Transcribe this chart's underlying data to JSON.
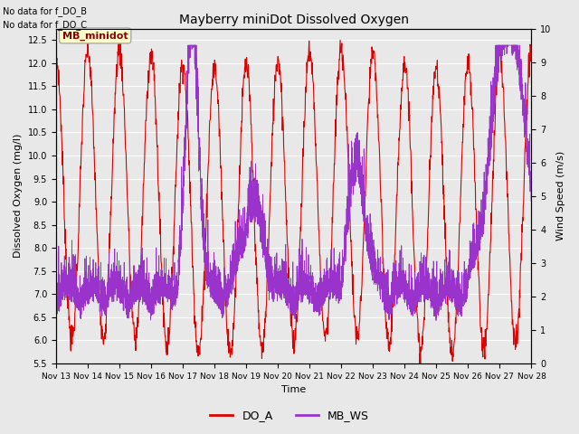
{
  "title": "Mayberry miniDot Dissolved Oxygen",
  "xlabel": "Time",
  "ylabel_left": "Dissolved Oxygen (mg/l)",
  "ylabel_right": "Wind Speed (m/s)",
  "text_no_data": [
    "No data for f_DO_B",
    "No data for f_DO_C"
  ],
  "legend_label_box": "MB_minidot",
  "legend_entries": [
    "DO_A",
    "MB_WS"
  ],
  "legend_colors": [
    "#dd0000",
    "#9933cc"
  ],
  "ylim_left": [
    5.5,
    12.75
  ],
  "ylim_right": [
    0.0,
    10.0
  ],
  "yticks_left": [
    5.5,
    6.0,
    6.5,
    7.0,
    7.5,
    8.0,
    8.5,
    9.0,
    9.5,
    10.0,
    10.5,
    11.0,
    11.5,
    12.0,
    12.5
  ],
  "yticks_right": [
    0.0,
    1.0,
    2.0,
    3.0,
    4.0,
    5.0,
    6.0,
    7.0,
    8.0,
    9.0,
    10.0
  ],
  "xtick_labels": [
    "Nov 13",
    "Nov 14",
    "Nov 15",
    "Nov 16",
    "Nov 17",
    "Nov 18",
    "Nov 19",
    "Nov 20",
    "Nov 21",
    "Nov 22",
    "Nov 23",
    "Nov 24",
    "Nov 25",
    "Nov 26",
    "Nov 27",
    "Nov 28"
  ],
  "do_color": "#dd0000",
  "ws_color": "#9933cc",
  "grid_color": "#ffffff",
  "bg_color": "#e8e8e8"
}
